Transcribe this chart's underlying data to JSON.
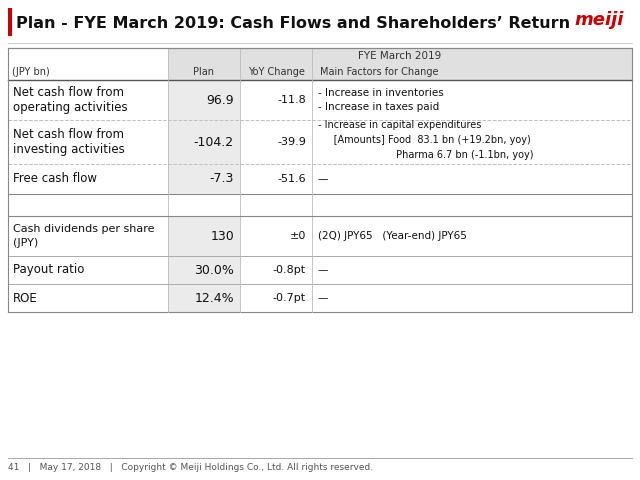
{
  "title": "Plan - FYE March 2019: Cash Flows and Shareholders’ Return",
  "title_red_bar_color": "#cc0000",
  "meiji_logo_color": "#cc0000",
  "bg_color": "#ffffff",
  "header_bg": "#e0e0e0",
  "cell_bg_light": "#ebebeb",
  "footer_text": "41   |   May 17, 2018   |   Copyright © Meiji Holdings Co., Ltd. All rights reserved.",
  "col_header_row1": "FYE March 2019",
  "col_sub_headers": [
    "(JPY bn)",
    "Plan",
    "YoY Change",
    "Main Factors for Change"
  ],
  "rows_section1": [
    {
      "label": "Net cash flow from\noperating activities",
      "plan": "96.9",
      "yoy": "-11.8",
      "factors": "- Increase in inventories\n- Increase in taxes paid"
    },
    {
      "label": "Net cash flow from\ninvesting activities",
      "plan": "-104.2",
      "yoy": "-39.9",
      "factors": "- Increase in capital expenditures\n     [Amounts] Food  83.1 bn (+19.2bn, yoy)\n                         Pharma 6.7 bn (-1.1bn, yoy)"
    },
    {
      "label": "Free cash flow",
      "plan": "-7.3",
      "yoy": "-51.6",
      "factors": "—"
    }
  ],
  "rows_section2": [
    {
      "label": "Cash dividends per share\n(JPY)",
      "plan": "130",
      "yoy": "±0",
      "factors": "(2Q) JPY65   (Year-end) JPY65"
    },
    {
      "label": "Payout ratio",
      "plan": "30.0%",
      "yoy": "-0.8pt",
      "factors": "—"
    },
    {
      "label": "ROE",
      "plan": "12.4%",
      "yoy": "-0.7pt",
      "factors": "—"
    }
  ]
}
